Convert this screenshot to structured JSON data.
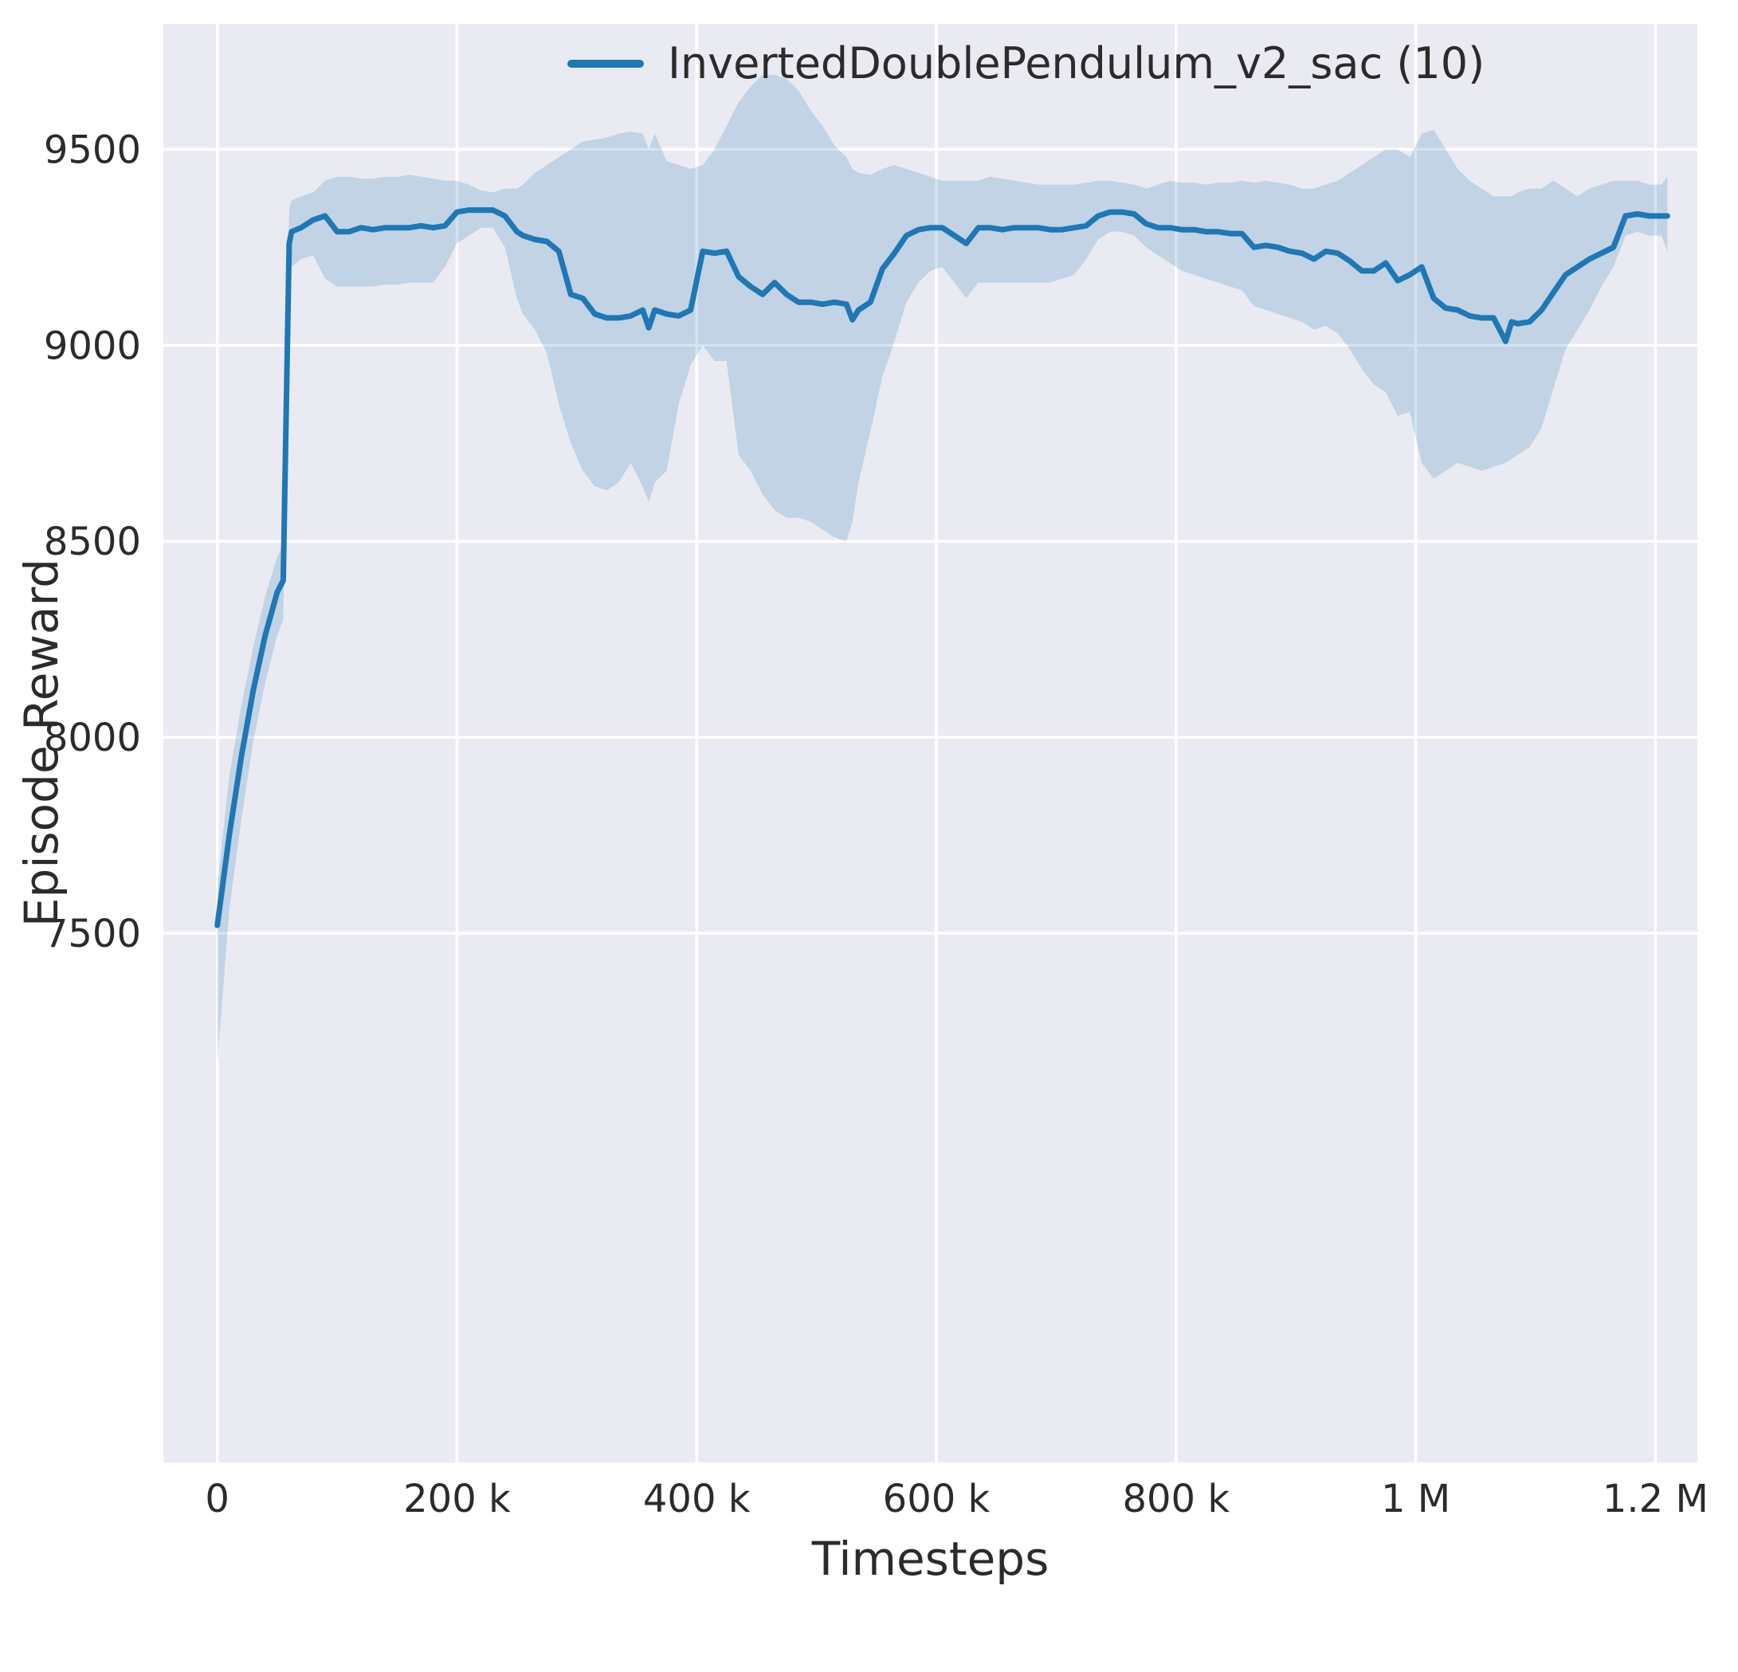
{
  "colors": {
    "line": "#1f77b4",
    "band_opacity": 0.2,
    "plot_bg": "#eaeaf2",
    "grid": "#ffffff",
    "text": "#2b2b2b"
  },
  "chart_data": {
    "type": "line",
    "title": "",
    "xlabel": "Timesteps",
    "ylabel": "Episode Reward",
    "grid": true,
    "legend_position": "upper center",
    "xlim": [
      -45000,
      1235000
    ],
    "ylim": [
      6150,
      9820
    ],
    "xticks": [
      {
        "value": 0,
        "label": "0"
      },
      {
        "value": 200000,
        "label": "200 k"
      },
      {
        "value": 400000,
        "label": "400 k"
      },
      {
        "value": 600000,
        "label": "600 k"
      },
      {
        "value": 800000,
        "label": "800 k"
      },
      {
        "value": 1000000,
        "label": "1 M"
      },
      {
        "value": 1200000,
        "label": "1.2 M"
      }
    ],
    "yticks": [
      {
        "value": 7500,
        "label": "7500"
      },
      {
        "value": 8000,
        "label": "8000"
      },
      {
        "value": 8500,
        "label": "8500"
      },
      {
        "value": 9000,
        "label": "9000"
      },
      {
        "value": 9500,
        "label": "9500"
      }
    ],
    "series": [
      {
        "name": "InvertedDoublePendulum_v2_sac (10)",
        "points_format": [
          "x",
          "mean",
          "band_low",
          "band_high"
        ],
        "points": [
          [
            0,
            7520,
            7170,
            7620
          ],
          [
            10000,
            7750,
            7560,
            7900
          ],
          [
            20000,
            7950,
            7790,
            8080
          ],
          [
            30000,
            8120,
            7990,
            8230
          ],
          [
            40000,
            8260,
            8140,
            8360
          ],
          [
            50000,
            8370,
            8260,
            8460
          ],
          [
            55000,
            8400,
            8300,
            8490
          ],
          [
            60000,
            9260,
            9150,
            9350
          ],
          [
            62000,
            9290,
            9200,
            9370
          ],
          [
            70000,
            9300,
            9220,
            9380
          ],
          [
            80000,
            9320,
            9230,
            9390
          ],
          [
            90000,
            9330,
            9170,
            9420
          ],
          [
            100000,
            9290,
            9150,
            9430
          ],
          [
            110000,
            9290,
            9150,
            9430
          ],
          [
            120000,
            9300,
            9150,
            9425
          ],
          [
            130000,
            9295,
            9150,
            9425
          ],
          [
            140000,
            9300,
            9155,
            9430
          ],
          [
            150000,
            9300,
            9155,
            9430
          ],
          [
            160000,
            9300,
            9160,
            9435
          ],
          [
            170000,
            9305,
            9160,
            9430
          ],
          [
            180000,
            9300,
            9160,
            9425
          ],
          [
            190000,
            9305,
            9200,
            9420
          ],
          [
            200000,
            9340,
            9260,
            9420
          ],
          [
            210000,
            9345,
            9280,
            9410
          ],
          [
            220000,
            9345,
            9300,
            9395
          ],
          [
            230000,
            9345,
            9300,
            9390
          ],
          [
            240000,
            9330,
            9250,
            9400
          ],
          [
            250000,
            9290,
            9120,
            9400
          ],
          [
            255000,
            9280,
            9080,
            9410
          ],
          [
            265000,
            9270,
            9040,
            9440
          ],
          [
            275000,
            9265,
            8980,
            9460
          ],
          [
            285000,
            9240,
            8850,
            9480
          ],
          [
            295000,
            9130,
            8750,
            9500
          ],
          [
            305000,
            9120,
            8680,
            9520
          ],
          [
            315000,
            9080,
            8640,
            9525
          ],
          [
            325000,
            9070,
            8630,
            9530
          ],
          [
            335000,
            9070,
            8650,
            9540
          ],
          [
            345000,
            9075,
            8700,
            9545
          ],
          [
            355000,
            9090,
            8640,
            9540
          ],
          [
            360000,
            9045,
            8600,
            9500
          ],
          [
            365000,
            9090,
            8650,
            9540
          ],
          [
            375000,
            9080,
            8680,
            9470
          ],
          [
            385000,
            9075,
            8850,
            9460
          ],
          [
            395000,
            9090,
            8950,
            9450
          ],
          [
            405000,
            9240,
            9000,
            9460
          ],
          [
            415000,
            9235,
            8960,
            9500
          ],
          [
            425000,
            9240,
            8960,
            9560
          ],
          [
            435000,
            9175,
            8720,
            9620
          ],
          [
            445000,
            9150,
            8680,
            9660
          ],
          [
            455000,
            9130,
            8620,
            9690
          ],
          [
            465000,
            9160,
            8580,
            9690
          ],
          [
            475000,
            9130,
            8560,
            9680
          ],
          [
            485000,
            9110,
            8560,
            9650
          ],
          [
            495000,
            9110,
            8550,
            9600
          ],
          [
            505000,
            9105,
            8530,
            9560
          ],
          [
            515000,
            9110,
            8510,
            9510
          ],
          [
            525000,
            9105,
            8500,
            9480
          ],
          [
            530000,
            9065,
            8550,
            9450
          ],
          [
            535000,
            9090,
            8650,
            9440
          ],
          [
            545000,
            9110,
            8780,
            9435
          ],
          [
            555000,
            9195,
            8920,
            9450
          ],
          [
            565000,
            9235,
            9010,
            9460
          ],
          [
            575000,
            9280,
            9110,
            9450
          ],
          [
            585000,
            9295,
            9160,
            9440
          ],
          [
            595000,
            9300,
            9190,
            9430
          ],
          [
            605000,
            9300,
            9200,
            9420
          ],
          [
            615000,
            9280,
            9160,
            9420
          ],
          [
            625000,
            9260,
            9120,
            9420
          ],
          [
            635000,
            9300,
            9160,
            9420
          ],
          [
            645000,
            9300,
            9160,
            9430
          ],
          [
            655000,
            9295,
            9160,
            9425
          ],
          [
            665000,
            9300,
            9160,
            9420
          ],
          [
            675000,
            9300,
            9160,
            9415
          ],
          [
            685000,
            9300,
            9160,
            9410
          ],
          [
            695000,
            9295,
            9160,
            9410
          ],
          [
            705000,
            9295,
            9170,
            9410
          ],
          [
            715000,
            9300,
            9180,
            9410
          ],
          [
            725000,
            9305,
            9220,
            9415
          ],
          [
            735000,
            9330,
            9270,
            9420
          ],
          [
            745000,
            9340,
            9290,
            9420
          ],
          [
            755000,
            9340,
            9290,
            9415
          ],
          [
            765000,
            9335,
            9280,
            9410
          ],
          [
            775000,
            9310,
            9250,
            9400
          ],
          [
            785000,
            9300,
            9230,
            9410
          ],
          [
            795000,
            9300,
            9210,
            9420
          ],
          [
            805000,
            9295,
            9190,
            9415
          ],
          [
            815000,
            9295,
            9180,
            9415
          ],
          [
            825000,
            9290,
            9170,
            9410
          ],
          [
            835000,
            9290,
            9160,
            9415
          ],
          [
            845000,
            9285,
            9150,
            9415
          ],
          [
            855000,
            9285,
            9140,
            9420
          ],
          [
            865000,
            9250,
            9100,
            9415
          ],
          [
            875000,
            9255,
            9090,
            9420
          ],
          [
            885000,
            9250,
            9080,
            9415
          ],
          [
            895000,
            9240,
            9070,
            9410
          ],
          [
            905000,
            9235,
            9060,
            9400
          ],
          [
            915000,
            9220,
            9040,
            9400
          ],
          [
            925000,
            9240,
            9050,
            9410
          ],
          [
            935000,
            9235,
            9030,
            9420
          ],
          [
            945000,
            9215,
            8990,
            9440
          ],
          [
            955000,
            9190,
            8940,
            9460
          ],
          [
            965000,
            9190,
            8900,
            9480
          ],
          [
            975000,
            9210,
            8880,
            9500
          ],
          [
            985000,
            9165,
            8820,
            9500
          ],
          [
            995000,
            9180,
            8830,
            9480
          ],
          [
            1005000,
            9200,
            8700,
            9540
          ],
          [
            1015000,
            9120,
            8660,
            9550
          ],
          [
            1025000,
            9095,
            8680,
            9500
          ],
          [
            1035000,
            9090,
            8700,
            9450
          ],
          [
            1045000,
            9075,
            8690,
            9420
          ],
          [
            1055000,
            9070,
            8680,
            9400
          ],
          [
            1065000,
            9070,
            8690,
            9380
          ],
          [
            1075000,
            9010,
            8700,
            9380
          ],
          [
            1080000,
            9060,
            8710,
            9380
          ],
          [
            1085000,
            9055,
            8720,
            9390
          ],
          [
            1095000,
            9060,
            8740,
            9400
          ],
          [
            1105000,
            9090,
            8790,
            9400
          ],
          [
            1115000,
            9135,
            8890,
            9420
          ],
          [
            1125000,
            9180,
            8990,
            9400
          ],
          [
            1135000,
            9200,
            9040,
            9380
          ],
          [
            1145000,
            9220,
            9090,
            9400
          ],
          [
            1155000,
            9235,
            9150,
            9410
          ],
          [
            1165000,
            9250,
            9200,
            9420
          ],
          [
            1175000,
            9330,
            9280,
            9420
          ],
          [
            1185000,
            9335,
            9290,
            9420
          ],
          [
            1195000,
            9330,
            9280,
            9410
          ],
          [
            1205000,
            9330,
            9280,
            9410
          ],
          [
            1210000,
            9330,
            9240,
            9430
          ]
        ]
      }
    ]
  }
}
